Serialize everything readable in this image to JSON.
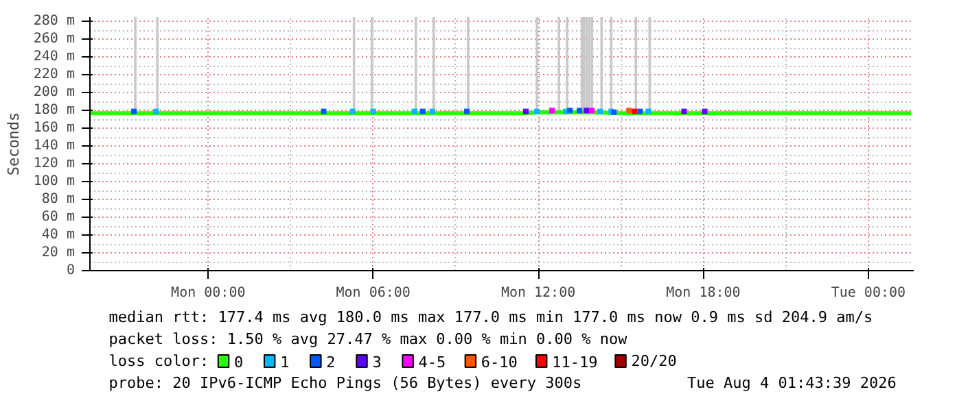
{
  "chart_data": {
    "type": "scatter",
    "ylabel": "Seconds",
    "xlim": [
      "2026-08-02T19:42",
      "2026-08-04T01:39"
    ],
    "ylim": [
      0,
      285
    ],
    "xticks": [
      {
        "value": "2026-08-03T00:00",
        "label": "Mon 00:00"
      },
      {
        "value": "2026-08-03T06:00",
        "label": "Mon 06:00"
      },
      {
        "value": "2026-08-03T12:00",
        "label": "Mon 12:00"
      },
      {
        "value": "2026-08-03T18:00",
        "label": "Mon 18:00"
      },
      {
        "value": "2026-08-04T00:00",
        "label": "Tue 00:00"
      }
    ],
    "yticks": [
      0,
      {
        "value": 20,
        "label": "20 m"
      },
      {
        "value": 40,
        "label": "40 m"
      },
      {
        "value": 60,
        "label": "60 m"
      },
      {
        "value": 80,
        "label": "80 m"
      },
      {
        "value": 100,
        "label": "100 m"
      },
      {
        "value": 120,
        "label": "120 m"
      },
      {
        "value": 140,
        "label": "140 m"
      },
      {
        "value": 160,
        "label": "160 m"
      },
      {
        "value": 180,
        "label": "180 m"
      },
      {
        "value": 200,
        "label": "200 m"
      },
      {
        "value": 220,
        "label": "220 m"
      },
      {
        "value": 240,
        "label": "240 m"
      },
      {
        "value": 260,
        "label": "260 m"
      },
      {
        "value": 280,
        "label": "280 m"
      }
    ],
    "grid": true,
    "legend": "bottom",
    "legend_title": "loss color:",
    "series": [
      {
        "type": "bar",
        "color": "#c8c8c8",
        "x": [
          "2026-08-02T21:21",
          "2026-08-02T22:09",
          "2026-08-03T05:18",
          "2026-08-03T05:57",
          "2026-08-03T07:33",
          "2026-08-03T08:12",
          "2026-08-03T09:27",
          "2026-08-03T11:57",
          "2026-08-03T12:45",
          "2026-08-03T13:03",
          "2026-08-03T13:35",
          "2026-08-03T13:39",
          "2026-08-03T13:45",
          "2026-08-03T13:51",
          "2026-08-03T13:57",
          "2026-08-03T14:18",
          "2026-08-03T14:39",
          "2026-08-03T15:33",
          "2026-08-03T16:03"
        ],
        "base": [
          177,
          177,
          177,
          177,
          177,
          177,
          177,
          177,
          177,
          177,
          177,
          177,
          177,
          177,
          177,
          177,
          177,
          177,
          177
        ],
        "values": [
          108,
          108,
          108,
          108,
          108,
          108,
          108,
          108,
          108,
          108,
          108,
          108,
          108,
          108,
          108,
          108,
          108,
          108,
          108
        ]
      },
      {
        "type": "line",
        "name": "0",
        "color": "#26ff00",
        "x": [
          "2026-08-02T19:42",
          "2026-08-03T11:30",
          "2026-08-03T12:00",
          "2026-08-03T13:00",
          "2026-08-03T14:00",
          "2026-08-03T15:00",
          "2026-08-03T17:30",
          "2026-08-04T01:33"
        ],
        "values": [
          177,
          177,
          178,
          178,
          178,
          177,
          177,
          177
        ]
      },
      {
        "name": "1",
        "marker": "square",
        "color": "#00b8ff",
        "x": [
          "2026-08-02T22:06",
          "2026-08-03T05:15",
          "2026-08-03T06:00",
          "2026-08-03T07:30",
          "2026-08-03T08:09",
          "2026-08-03T11:57",
          "2026-08-03T13:00",
          "2026-08-03T14:15",
          "2026-08-03T14:39",
          "2026-08-03T16:00"
        ],
        "values": [
          179,
          179,
          179,
          179,
          179,
          179,
          179,
          179,
          179,
          179
        ]
      },
      {
        "name": "2",
        "marker": "square",
        "color": "#0059ff",
        "x": [
          "2026-08-02T21:18",
          "2026-08-03T04:12",
          "2026-08-03T07:48",
          "2026-08-03T09:24",
          "2026-08-03T13:09",
          "2026-08-03T13:30",
          "2026-08-03T14:45",
          "2026-08-03T15:42"
        ],
        "values": [
          179,
          179,
          179,
          179,
          180,
          180,
          178,
          179
        ]
      },
      {
        "name": "3",
        "marker": "square",
        "color": "#5e00ff",
        "x": [
          "2026-08-03T11:33",
          "2026-08-03T13:45",
          "2026-08-03T17:18",
          "2026-08-03T18:03"
        ],
        "values": [
          179,
          180,
          179,
          179
        ]
      },
      {
        "name": "4-5",
        "marker": "square",
        "color": "#ff00ff",
        "x": [
          "2026-08-03T12:30",
          "2026-08-03T13:57"
        ],
        "values": [
          180,
          180
        ]
      },
      {
        "name": "6-10",
        "marker": "square",
        "color": "#ff5500",
        "x": [
          "2026-08-03T15:18"
        ],
        "values": [
          180
        ]
      },
      {
        "name": "11-19",
        "marker": "square",
        "color": "#ff0000",
        "x": [
          "2026-08-03T15:30"
        ],
        "values": [
          179
        ]
      },
      {
        "name": "20/20",
        "marker": "square",
        "color": "#a10000"
      }
    ],
    "annotations": [
      "median rtt:  177.4 ms avg  180.0 ms max  177.0 ms min  177.0 ms now  0.9 ms sd  204.9   am/s",
      "packet loss: 1.50 % avg  27.47 % max  0.00 % min  0.00 % now",
      "probe:       20 IPv6-ICMP Echo Pings (56 Bytes) every 300s",
      "Tue Aug  4 01:43:39 2026"
    ]
  }
}
